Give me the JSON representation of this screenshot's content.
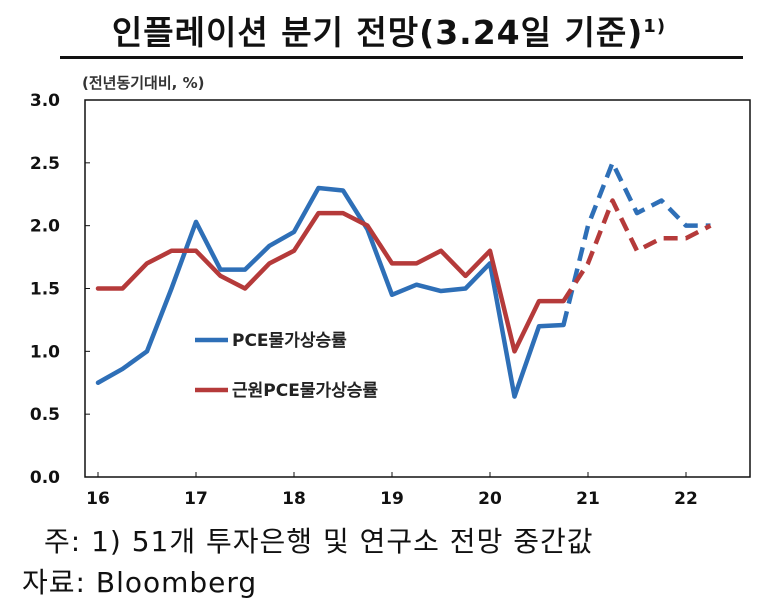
{
  "title": "인플레이션 분기 전망(3.24일 기준)",
  "title_sup": "1)",
  "unit": "(전년동기대비, %)",
  "note": "주: 1) 51개 투자은행 및 연구소 전망 중간값",
  "source": "자료: Bloomberg",
  "chart_data": {
    "type": "line",
    "title": "인플레이션 분기 전망(3.24일 기준)",
    "ylabel": "(전년동기대비, %)",
    "xlabel": "",
    "ylim": [
      0.0,
      3.0
    ],
    "yticks": [
      "0.0",
      "0.5",
      "1.0",
      "1.5",
      "2.0",
      "2.5",
      "3.0"
    ],
    "xticks": [
      "16",
      "17",
      "18",
      "19",
      "20",
      "21",
      "22"
    ],
    "x": [
      "16Q1",
      "16Q2",
      "16Q3",
      "16Q4",
      "17Q1",
      "17Q2",
      "17Q3",
      "17Q4",
      "18Q1",
      "18Q2",
      "18Q3",
      "18Q4",
      "19Q1",
      "19Q2",
      "19Q3",
      "19Q4",
      "20Q1",
      "20Q2",
      "20Q3",
      "20Q4",
      "21Q1",
      "21Q2",
      "21Q3",
      "21Q4",
      "22Q1",
      "22Q2"
    ],
    "forecast_start": "20Q4",
    "legend_position": "center-left",
    "series": [
      {
        "name": "PCE물가상승률",
        "color": "#2e6fb7",
        "values": [
          0.75,
          0.86,
          1.0,
          1.5,
          2.03,
          1.65,
          1.65,
          1.84,
          1.95,
          2.3,
          2.28,
          1.97,
          1.45,
          1.53,
          1.48,
          1.5,
          1.7,
          0.64,
          1.2,
          1.21,
          2.0,
          2.5,
          2.1,
          2.2,
          2.0,
          2.0
        ]
      },
      {
        "name": "근원PCE물가상승률",
        "color": "#b53a3a",
        "values": [
          1.5,
          1.5,
          1.7,
          1.8,
          1.8,
          1.6,
          1.5,
          1.7,
          1.8,
          2.1,
          2.1,
          2.0,
          1.7,
          1.7,
          1.8,
          1.6,
          1.8,
          1.0,
          1.4,
          1.4,
          1.7,
          2.2,
          1.8,
          1.9,
          1.9,
          2.0
        ]
      }
    ]
  }
}
